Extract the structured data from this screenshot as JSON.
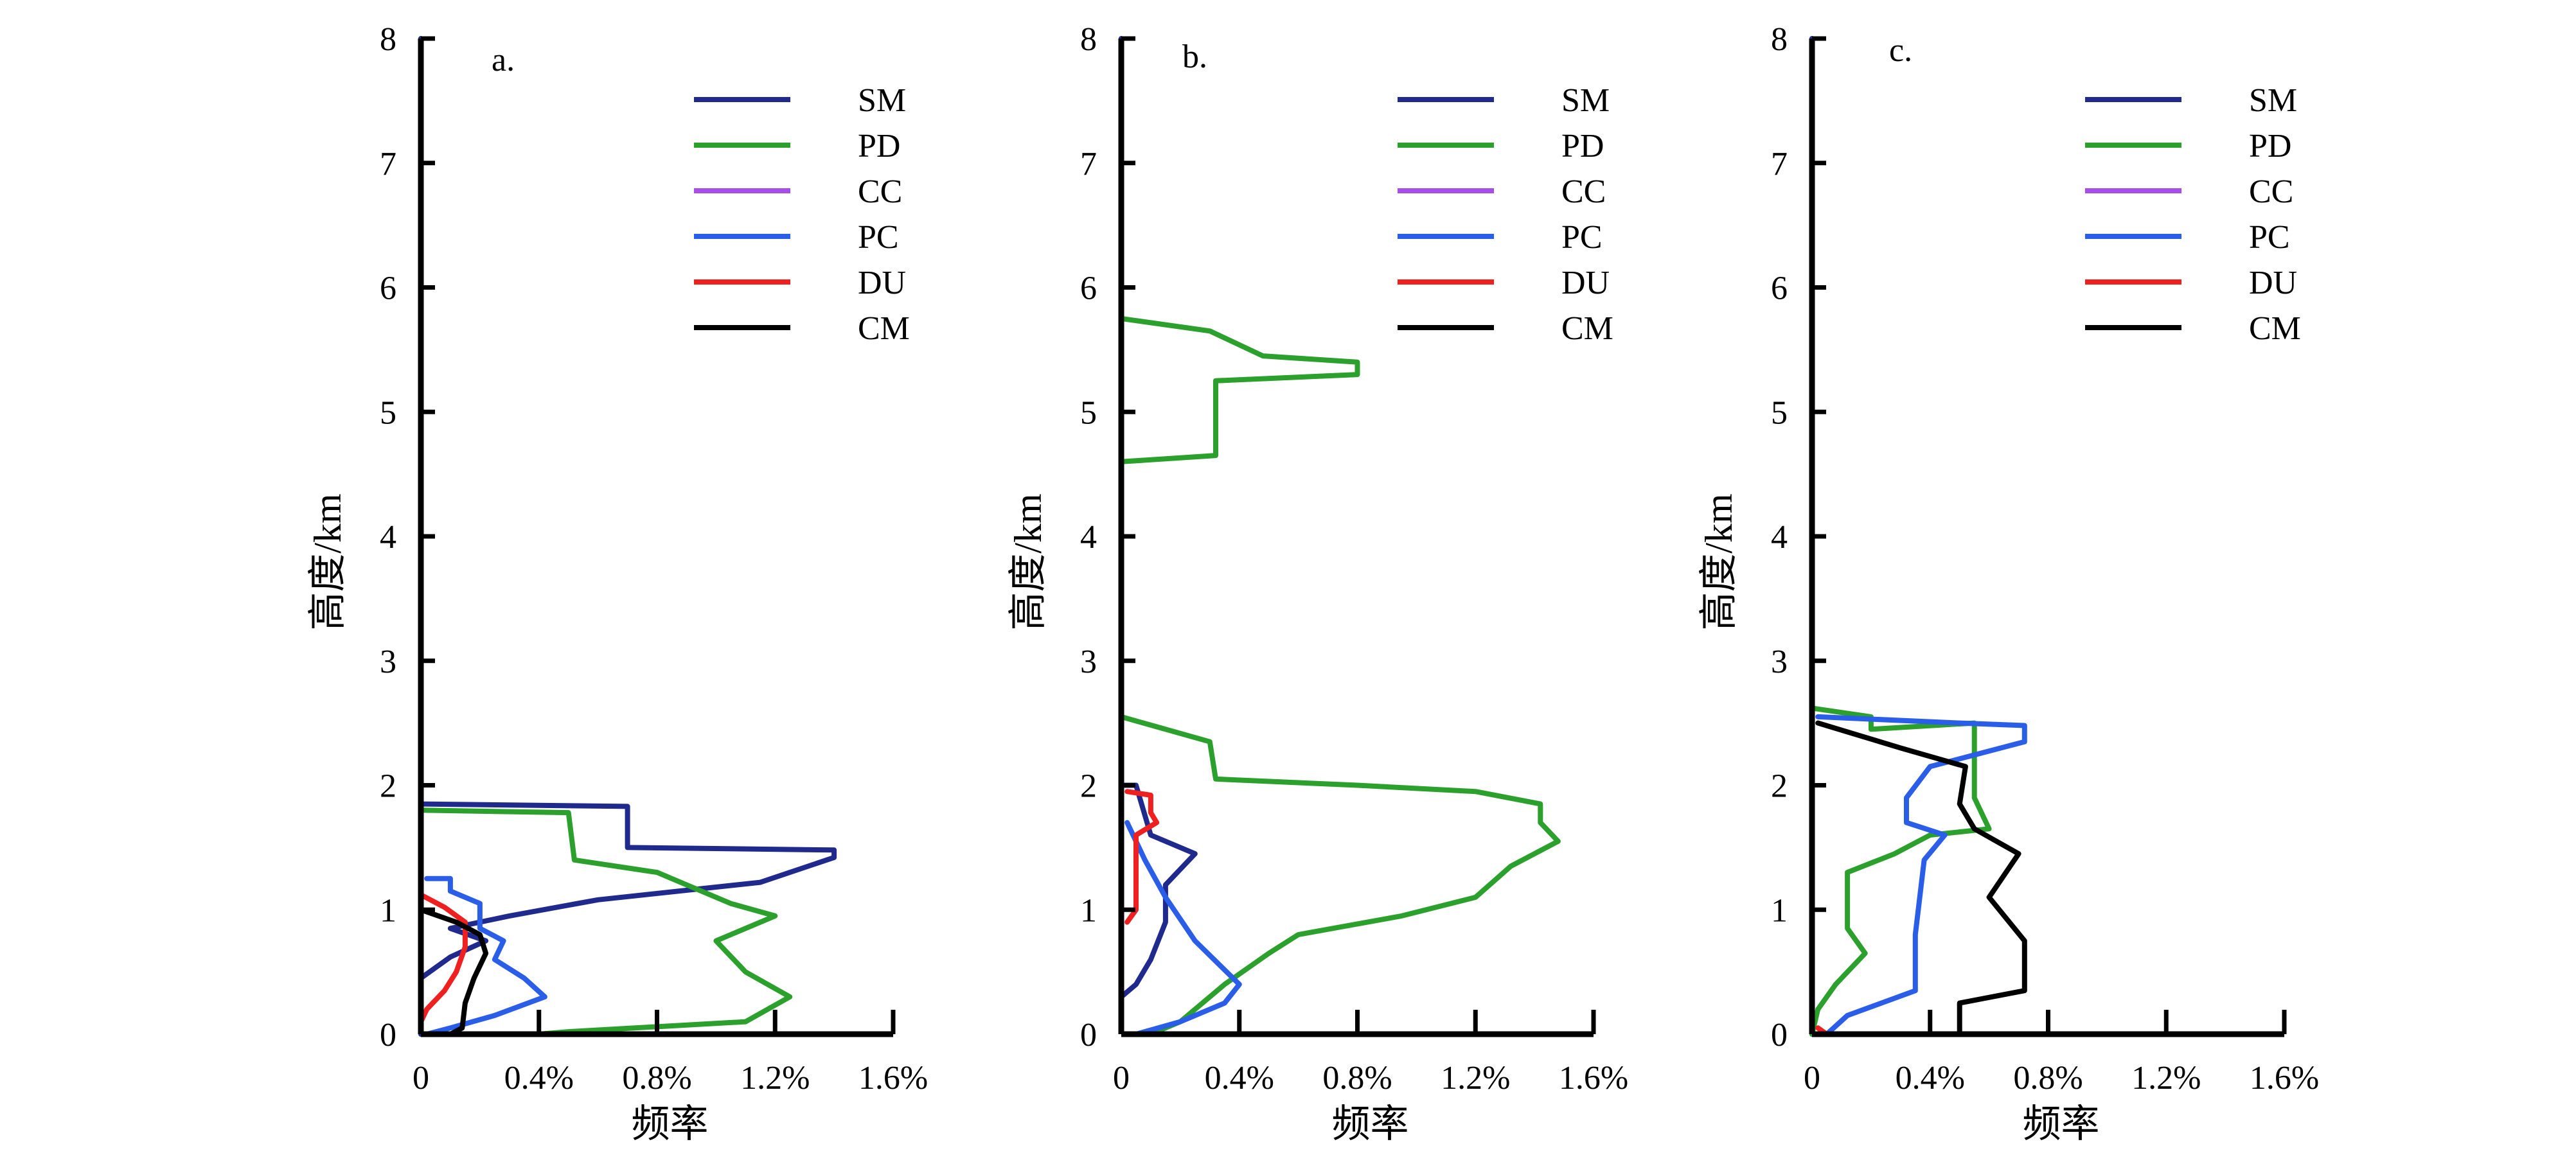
{
  "colors": {
    "SM": "#1f2a8c",
    "PD": "#2ca02c",
    "CC": "#a64dea",
    "PC": "#2a5de8",
    "DU": "#ee2020",
    "CM": "#000000"
  },
  "chart_data": [
    {
      "type": "line",
      "panel_label": "a.",
      "xlabel": "频率",
      "ylabel": "高度/km",
      "xlim": [
        0,
        1.6
      ],
      "ylim": [
        0,
        8
      ],
      "xticks": [
        "0",
        "0.4%",
        "0.8%",
        "1.2%",
        "1.6%"
      ],
      "yticks": [
        "0",
        "1",
        "2",
        "3",
        "4",
        "5",
        "6",
        "7",
        "8"
      ],
      "legend": [
        "SM",
        "PD",
        "CC",
        "PC",
        "DU",
        "CM"
      ],
      "legend_position": "top-right",
      "series": [
        {
          "name": "SM",
          "points": [
            [
              0,
              8
            ],
            [
              0,
              1.85
            ],
            [
              0.7,
              1.83
            ],
            [
              0.7,
              1.5
            ],
            [
              1.4,
              1.48
            ],
            [
              1.4,
              1.42
            ],
            [
              1.15,
              1.22
            ],
            [
              0.6,
              1.08
            ],
            [
              0.3,
              0.95
            ],
            [
              0.1,
              0.85
            ],
            [
              0.22,
              0.75
            ],
            [
              0.1,
              0.62
            ],
            [
              0,
              0.45
            ],
            [
              0,
              0
            ]
          ]
        },
        {
          "name": "PD",
          "points": [
            [
              0,
              1.8
            ],
            [
              0.5,
              1.78
            ],
            [
              0.52,
              1.4
            ],
            [
              0.8,
              1.3
            ],
            [
              1.05,
              1.05
            ],
            [
              1.2,
              0.95
            ],
            [
              1.0,
              0.75
            ],
            [
              1.1,
              0.5
            ],
            [
              1.25,
              0.3
            ],
            [
              1.1,
              0.1
            ],
            [
              0.5,
              0.02
            ],
            [
              0.4,
              0
            ]
          ]
        },
        {
          "name": "CC",
          "points": [
            [
              0,
              1.7
            ],
            [
              0,
              0.3
            ]
          ]
        },
        {
          "name": "PC",
          "points": [
            [
              0.02,
              1.25
            ],
            [
              0.1,
              1.25
            ],
            [
              0.1,
              1.15
            ],
            [
              0.2,
              1.05
            ],
            [
              0.2,
              0.85
            ],
            [
              0.28,
              0.75
            ],
            [
              0.25,
              0.6
            ],
            [
              0.35,
              0.45
            ],
            [
              0.42,
              0.3
            ],
            [
              0.25,
              0.15
            ],
            [
              0.1,
              0.05
            ],
            [
              0.02,
              0
            ]
          ]
        },
        {
          "name": "DU",
          "points": [
            [
              0,
              1.12
            ],
            [
              0.08,
              1.02
            ],
            [
              0.15,
              0.9
            ],
            [
              0.15,
              0.7
            ],
            [
              0.12,
              0.5
            ],
            [
              0.08,
              0.35
            ],
            [
              0.02,
              0.2
            ],
            [
              0,
              0.1
            ]
          ]
        },
        {
          "name": "CM",
          "points": [
            [
              0,
              1.0
            ],
            [
              0.12,
              0.9
            ],
            [
              0.2,
              0.8
            ],
            [
              0.22,
              0.65
            ],
            [
              0.18,
              0.45
            ],
            [
              0.15,
              0.25
            ],
            [
              0.14,
              0.05
            ],
            [
              0.1,
              0
            ]
          ]
        }
      ]
    },
    {
      "type": "line",
      "panel_label": "b.",
      "xlabel": "频率",
      "ylabel": "高度/km",
      "xlim": [
        0,
        1.6
      ],
      "ylim": [
        0,
        8
      ],
      "xticks": [
        "0",
        "0.4%",
        "0.8%",
        "1.2%",
        "1.6%"
      ],
      "yticks": [
        "0",
        "1",
        "2",
        "3",
        "4",
        "5",
        "6",
        "7",
        "8"
      ],
      "legend": [
        "SM",
        "PD",
        "CC",
        "PC",
        "DU",
        "CM"
      ],
      "legend_position": "top-right",
      "series": [
        {
          "name": "SM",
          "points": [
            [
              0,
              8
            ],
            [
              0,
              2.0
            ],
            [
              0.05,
              2.0
            ],
            [
              0.1,
              1.6
            ],
            [
              0.25,
              1.45
            ],
            [
              0.15,
              1.2
            ],
            [
              0.15,
              0.9
            ],
            [
              0.1,
              0.6
            ],
            [
              0.05,
              0.4
            ],
            [
              0,
              0.3
            ]
          ]
        },
        {
          "name": "PD",
          "points": [
            [
              0,
              5.75
            ],
            [
              0.3,
              5.65
            ],
            [
              0.48,
              5.45
            ],
            [
              0.8,
              5.4
            ],
            [
              0.8,
              5.3
            ],
            [
              0.32,
              5.25
            ],
            [
              0.32,
              4.65
            ],
            [
              0,
              4.6
            ]
          ]
        },
        {
          "name": "PD",
          "points": [
            [
              0,
              2.55
            ],
            [
              0.3,
              2.35
            ],
            [
              0.32,
              2.05
            ],
            [
              0.8,
              2.0
            ],
            [
              1.2,
              1.95
            ],
            [
              1.42,
              1.85
            ],
            [
              1.42,
              1.7
            ],
            [
              1.48,
              1.55
            ],
            [
              1.32,
              1.35
            ],
            [
              1.2,
              1.1
            ],
            [
              0.95,
              0.95
            ],
            [
              0.6,
              0.8
            ],
            [
              0.5,
              0.65
            ],
            [
              0.35,
              0.4
            ],
            [
              0.2,
              0.1
            ],
            [
              0.1,
              0
            ]
          ]
        },
        {
          "name": "CC",
          "points": [
            [
              0,
              1.6
            ],
            [
              0,
              0.55
            ]
          ]
        },
        {
          "name": "PC",
          "points": [
            [
              0.02,
              1.7
            ],
            [
              0.08,
              1.4
            ],
            [
              0.15,
              1.1
            ],
            [
              0.25,
              0.75
            ],
            [
              0.4,
              0.4
            ],
            [
              0.35,
              0.25
            ],
            [
              0.2,
              0.1
            ],
            [
              0.05,
              0
            ]
          ]
        },
        {
          "name": "DU",
          "points": [
            [
              0.02,
              1.95
            ],
            [
              0.1,
              1.92
            ],
            [
              0.1,
              1.78
            ],
            [
              0.12,
              1.7
            ],
            [
              0.05,
              1.6
            ],
            [
              0.05,
              1.0
            ],
            [
              0.02,
              0.9
            ]
          ]
        },
        {
          "name": "CM",
          "points": [
            [
              0,
              1.0
            ],
            [
              0,
              0.4
            ]
          ]
        }
      ]
    },
    {
      "type": "line",
      "panel_label": "c.",
      "xlabel": "频率",
      "ylabel": "高度/km",
      "xlim": [
        0,
        1.6
      ],
      "ylim": [
        0,
        8
      ],
      "xticks": [
        "0",
        "0.4%",
        "0.8%",
        "1.2%",
        "1.6%"
      ],
      "yticks": [
        "0",
        "1",
        "2",
        "3",
        "4",
        "5",
        "6",
        "7",
        "8"
      ],
      "legend": [
        "SM",
        "PD",
        "CC",
        "PC",
        "DU",
        "CM"
      ],
      "legend_position": "top-right",
      "series": [
        {
          "name": "SM",
          "points": [
            [
              0,
              8
            ],
            [
              0,
              0
            ]
          ]
        },
        {
          "name": "PD",
          "points": [
            [
              0,
              2.62
            ],
            [
              0.2,
              2.55
            ],
            [
              0.2,
              2.45
            ],
            [
              0.55,
              2.5
            ],
            [
              0.55,
              1.9
            ],
            [
              0.6,
              1.65
            ],
            [
              0.4,
              1.6
            ],
            [
              0.28,
              1.45
            ],
            [
              0.12,
              1.3
            ],
            [
              0.12,
              0.85
            ],
            [
              0.18,
              0.65
            ],
            [
              0.08,
              0.4
            ],
            [
              0.02,
              0.2
            ],
            [
              0,
              0
            ]
          ]
        },
        {
          "name": "CC",
          "points": [
            [
              0,
              1.3
            ],
            [
              0,
              0.45
            ]
          ]
        },
        {
          "name": "PC",
          "points": [
            [
              0.02,
              2.55
            ],
            [
              0.5,
              2.5
            ],
            [
              0.72,
              2.48
            ],
            [
              0.72,
              2.35
            ],
            [
              0.4,
              2.15
            ],
            [
              0.32,
              1.9
            ],
            [
              0.32,
              1.7
            ],
            [
              0.45,
              1.6
            ],
            [
              0.38,
              1.4
            ],
            [
              0.35,
              0.8
            ],
            [
              0.35,
              0.35
            ],
            [
              0.12,
              0.15
            ],
            [
              0.05,
              0
            ]
          ]
        },
        {
          "name": "DU",
          "points": [
            [
              0.02,
              0.05
            ],
            [
              0.05,
              0
            ]
          ]
        },
        {
          "name": "CM",
          "points": [
            [
              0.02,
              2.5
            ],
            [
              0.3,
              2.3
            ],
            [
              0.52,
              2.15
            ],
            [
              0.5,
              1.85
            ],
            [
              0.55,
              1.65
            ],
            [
              0.7,
              1.45
            ],
            [
              0.6,
              1.1
            ],
            [
              0.72,
              0.75
            ],
            [
              0.72,
              0.35
            ],
            [
              0.5,
              0.25
            ],
            [
              0.5,
              0
            ]
          ]
        }
      ]
    }
  ]
}
